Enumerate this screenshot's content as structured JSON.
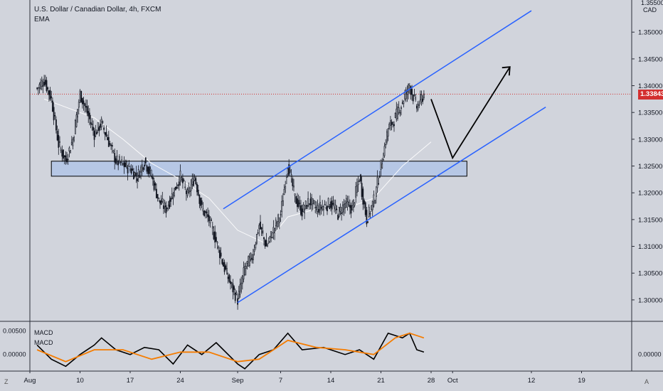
{
  "header": {
    "title": "U.S. Dollar / Canadian Dollar, 4h, FXCM",
    "indicator": "EMA"
  },
  "price_axis": {
    "currency": "CAD",
    "top_partial_label": "1.35500",
    "current_price_label": "1.33843",
    "current_price_color": "#d32f2f"
  },
  "macd": {
    "labels": [
      "MACD",
      "MACD"
    ],
    "macd_color": "#000000",
    "signal_color": "#f57c00"
  },
  "corners": {
    "left": "Z",
    "right": "A"
  },
  "colors": {
    "background": "#d1d4dc",
    "channel": "#2962ff",
    "zone_fill": "#b2c4e6",
    "candle": "#131722",
    "ema": "#ffffff"
  },
  "chart_data": [
    {
      "type": "candlestick",
      "title": "U.S. Dollar / Canadian Dollar, 4h, FXCM",
      "xlabel": "",
      "ylabel": "",
      "x_ticks": [
        "Aug",
        "10",
        "17",
        "24",
        "Sep",
        "7",
        "14",
        "21",
        "28",
        "Oct",
        "12",
        "19"
      ],
      "y_ticks": [
        1.3,
        1.305,
        1.31,
        1.315,
        1.32,
        1.325,
        1.33,
        1.335,
        1.34,
        1.345,
        1.35
      ],
      "ylim": [
        1.296,
        1.356
      ],
      "current_price": 1.33843,
      "close_path": [
        [
          "Aug 4",
          1.3395
        ],
        [
          "Aug 5",
          1.341
        ],
        [
          "Aug 6",
          1.3375
        ],
        [
          "Aug 7",
          1.329
        ],
        [
          "Aug 8",
          1.326
        ],
        [
          "Aug 9",
          1.33
        ],
        [
          "Aug 10",
          1.3385
        ],
        [
          "Aug 11",
          1.335
        ],
        [
          "Aug 12",
          1.331
        ],
        [
          "Aug 13",
          1.333
        ],
        [
          "Aug 14",
          1.3295
        ],
        [
          "Aug 15",
          1.326
        ],
        [
          "Aug 17",
          1.3245
        ],
        [
          "Aug 18",
          1.323
        ],
        [
          "Aug 19",
          1.326
        ],
        [
          "Aug 20",
          1.323
        ],
        [
          "Aug 21",
          1.3185
        ],
        [
          "Aug 22",
          1.317
        ],
        [
          "Aug 24",
          1.323
        ],
        [
          "Aug 25",
          1.3195
        ],
        [
          "Aug 26",
          1.323
        ],
        [
          "Aug 27",
          1.317
        ],
        [
          "Aug 28",
          1.315
        ],
        [
          "Aug 29",
          1.311
        ],
        [
          "Aug 30",
          1.3065
        ],
        [
          "Aug 31",
          1.303
        ],
        [
          "Sep 1",
          1.3
        ],
        [
          "Sep 2",
          1.306
        ],
        [
          "Sep 3",
          1.308
        ],
        [
          "Sep 4",
          1.314
        ],
        [
          "Sep 5",
          1.31
        ],
        [
          "Sep 6",
          1.313
        ],
        [
          "Sep 7",
          1.316
        ],
        [
          "Sep 8",
          1.3255
        ],
        [
          "Sep 9",
          1.319
        ],
        [
          "Sep 10",
          1.3165
        ],
        [
          "Sep 11",
          1.3185
        ],
        [
          "Sep 12",
          1.317
        ],
        [
          "Sep 14",
          1.318
        ],
        [
          "Sep 15",
          1.316
        ],
        [
          "Sep 16",
          1.318
        ],
        [
          "Sep 17",
          1.317
        ],
        [
          "Sep 18",
          1.323
        ],
        [
          "Sep 19",
          1.315
        ],
        [
          "Sep 20",
          1.3185
        ],
        [
          "Sep 21",
          1.325
        ],
        [
          "Sep 22",
          1.332
        ],
        [
          "Sep 23",
          1.334
        ],
        [
          "Sep 24",
          1.337
        ],
        [
          "Sep 25",
          1.34
        ],
        [
          "Sep 26",
          1.336
        ],
        [
          "Sep 27",
          1.3384
        ]
      ],
      "ema_path": [
        [
          "Aug 5",
          1.3375
        ],
        [
          "Aug 8",
          1.336
        ],
        [
          "Aug 12",
          1.334
        ],
        [
          "Aug 16",
          1.33
        ],
        [
          "Aug 20",
          1.3255
        ],
        [
          "Aug 24",
          1.3225
        ],
        [
          "Aug 28",
          1.319
        ],
        [
          "Sep 1",
          1.313
        ],
        [
          "Sep 5",
          1.3105
        ],
        [
          "Sep 8",
          1.3155
        ],
        [
          "Sep 12",
          1.317
        ],
        [
          "Sep 16",
          1.317
        ],
        [
          "Sep 20",
          1.319
        ],
        [
          "Sep 24",
          1.325
        ],
        [
          "Sep 28",
          1.3295
        ]
      ],
      "support_zone": {
        "x_start": "Aug 6",
        "x_end": "Oct 3",
        "y_low": 1.3231,
        "y_high": 1.3259
      },
      "channel_upper": {
        "x_start": "Aug 30",
        "y_start": 1.317,
        "x_end": "Oct 12",
        "y_end": 1.354
      },
      "channel_lower": {
        "x_start": "Sep 1",
        "y_start": 1.2995,
        "x_end": "Oct 14",
        "y_end": 1.336
      },
      "projection_path": [
        [
          "Sep 28",
          1.3375
        ],
        [
          "Oct 1",
          1.3265
        ],
        [
          "Oct 9",
          1.3435
        ]
      ]
    },
    {
      "type": "line",
      "title": "MACD",
      "y_ticks": [
        0.005,
        0.0
      ],
      "ylim": [
        -0.0035,
        0.007
      ],
      "series": [
        {
          "name": "MACD",
          "color": "#000000",
          "points": [
            [
              "Aug 4",
              0.002
            ],
            [
              "Aug 6",
              -0.001
            ],
            [
              "Aug 8",
              -0.0025
            ],
            [
              "Aug 10",
              0.0
            ],
            [
              "Aug 12",
              0.002
            ],
            [
              "Aug 13",
              0.0035
            ],
            [
              "Aug 15",
              0.001
            ],
            [
              "Aug 17",
              0.0
            ],
            [
              "Aug 19",
              0.0015
            ],
            [
              "Aug 21",
              0.001
            ],
            [
              "Aug 23",
              -0.002
            ],
            [
              "Aug 25",
              0.002
            ],
            [
              "Aug 27",
              0.0
            ],
            [
              "Aug 29",
              0.0025
            ],
            [
              "Sep 1",
              -0.002
            ],
            [
              "Sep 2",
              -0.003
            ],
            [
              "Sep 4",
              0.0
            ],
            [
              "Sep 6",
              0.001
            ],
            [
              "Sep 8",
              0.0045
            ],
            [
              "Sep 10",
              0.001
            ],
            [
              "Sep 13",
              0.0015
            ],
            [
              "Sep 16",
              0.0
            ],
            [
              "Sep 18",
              0.001
            ],
            [
              "Sep 20",
              -0.001
            ],
            [
              "Sep 22",
              0.0045
            ],
            [
              "Sep 24",
              0.0035
            ],
            [
              "Sep 25",
              0.0045
            ],
            [
              "Sep 26",
              0.001
            ],
            [
              "Sep 27",
              0.0005
            ]
          ]
        },
        {
          "name": "MACD",
          "color": "#f57c00",
          "points": [
            [
              "Aug 4",
              0.001
            ],
            [
              "Aug 8",
              -0.0015
            ],
            [
              "Aug 12",
              0.001
            ],
            [
              "Aug 16",
              0.001
            ],
            [
              "Aug 20",
              -0.001
            ],
            [
              "Aug 24",
              0.0005
            ],
            [
              "Aug 28",
              0.0005
            ],
            [
              "Sep 1",
              -0.0015
            ],
            [
              "Sep 4",
              -0.001
            ],
            [
              "Sep 8",
              0.003
            ],
            [
              "Sep 12",
              0.0015
            ],
            [
              "Sep 16",
              0.001
            ],
            [
              "Sep 20",
              0.0
            ],
            [
              "Sep 23",
              0.0035
            ],
            [
              "Sep 25",
              0.0045
            ],
            [
              "Sep 27",
              0.0035
            ]
          ]
        }
      ]
    }
  ]
}
